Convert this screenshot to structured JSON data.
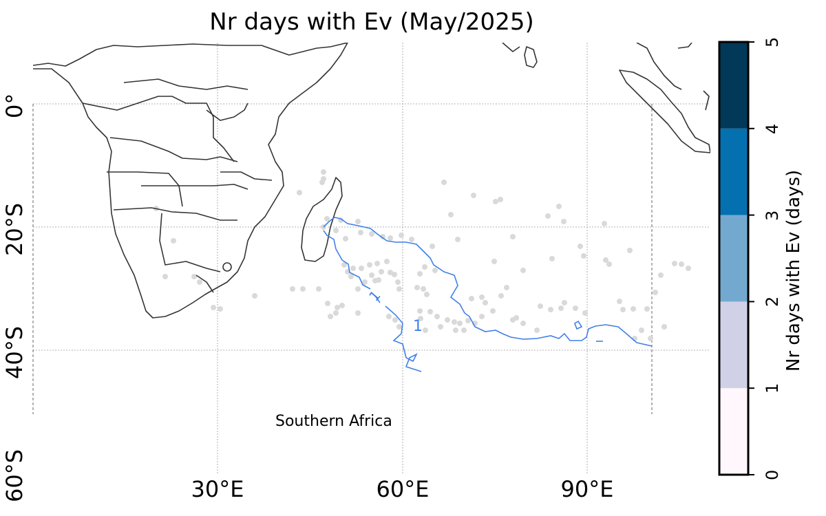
{
  "title": "Nr days with Ev (May/2025)",
  "region_label": "Southern Africa",
  "axes": {
    "lon_ticks": [
      "30°E",
      "60°E",
      "90°E"
    ],
    "lat_ticks": [
      "0°",
      "20°S",
      "40°S",
      "60°S"
    ]
  },
  "colorbar": {
    "label": "Nr days with Ev (days)",
    "ticks": [
      "0",
      "1",
      "2",
      "3",
      "4",
      "5"
    ],
    "colors": [
      "#fff7fb",
      "#d0d1e6",
      "#74a9cf",
      "#0570b0",
      "#023858"
    ]
  },
  "contour": {
    "level_label": "1",
    "color": "#3f7fe8"
  },
  "colors": {
    "coastline": "#333333",
    "gridline": "#999999",
    "stations": "#d9d9d9"
  }
}
